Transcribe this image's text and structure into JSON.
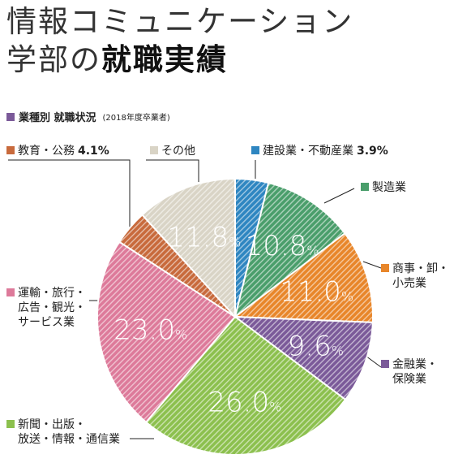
{
  "title": {
    "line1": "情報コミュニケーション",
    "line2_light": "学部の",
    "line2_bold": "就職実績"
  },
  "subtitle": {
    "label": "業種別 就職状況",
    "note": "(2018年度卒業者)",
    "color": "#7b5a99"
  },
  "chart_data": {
    "type": "pie",
    "start": "12 o'clock, clockwise",
    "slices": [
      {
        "name": "建設業・不動産業",
        "value": 3.9,
        "label": "3.9%",
        "color": "#2e86c1"
      },
      {
        "name": "製造業",
        "value": 10.8,
        "label": "10.8%",
        "color": "#4a9e6b"
      },
      {
        "name": "商事・卸・小売業",
        "value": 11.0,
        "label": "11.0%",
        "color": "#e8862a"
      },
      {
        "name": "金融業・保険業",
        "value": 9.6,
        "label": "9.6%",
        "color": "#7b5a99"
      },
      {
        "name": "新聞・出版・放送・情報・通信業",
        "value": 26.0,
        "label": "26.0%",
        "color": "#8cc04e"
      },
      {
        "name": "運輸・旅行・広告・観光・サービス業",
        "value": 23.0,
        "label": "23.0%",
        "color": "#dd7a9a"
      },
      {
        "name": "教育・公務",
        "value": 4.1,
        "label": "4.1%",
        "color": "#c86a3c"
      },
      {
        "name": "その他",
        "value": 11.8,
        "label": "11.8%",
        "color": "#d9d4c6"
      }
    ]
  },
  "legend": {
    "construction": {
      "name": "建設業・不動産業",
      "pct": "3.9%"
    },
    "manufacturing": {
      "name": "製造業"
    },
    "commerce": {
      "line1": "商事・卸・",
      "line2": "小売業"
    },
    "finance": {
      "line1": "金融業・",
      "line2": "保険業"
    },
    "media": {
      "line1": "新聞・出版・",
      "line2": "放送・情報・通信業"
    },
    "transport": {
      "line1": "運輸・旅行・",
      "line2": "広告・観光・",
      "line3": "サービス業"
    },
    "education": {
      "name": "教育・公務",
      "pct": "4.1%"
    },
    "other": {
      "name": "その他"
    }
  }
}
